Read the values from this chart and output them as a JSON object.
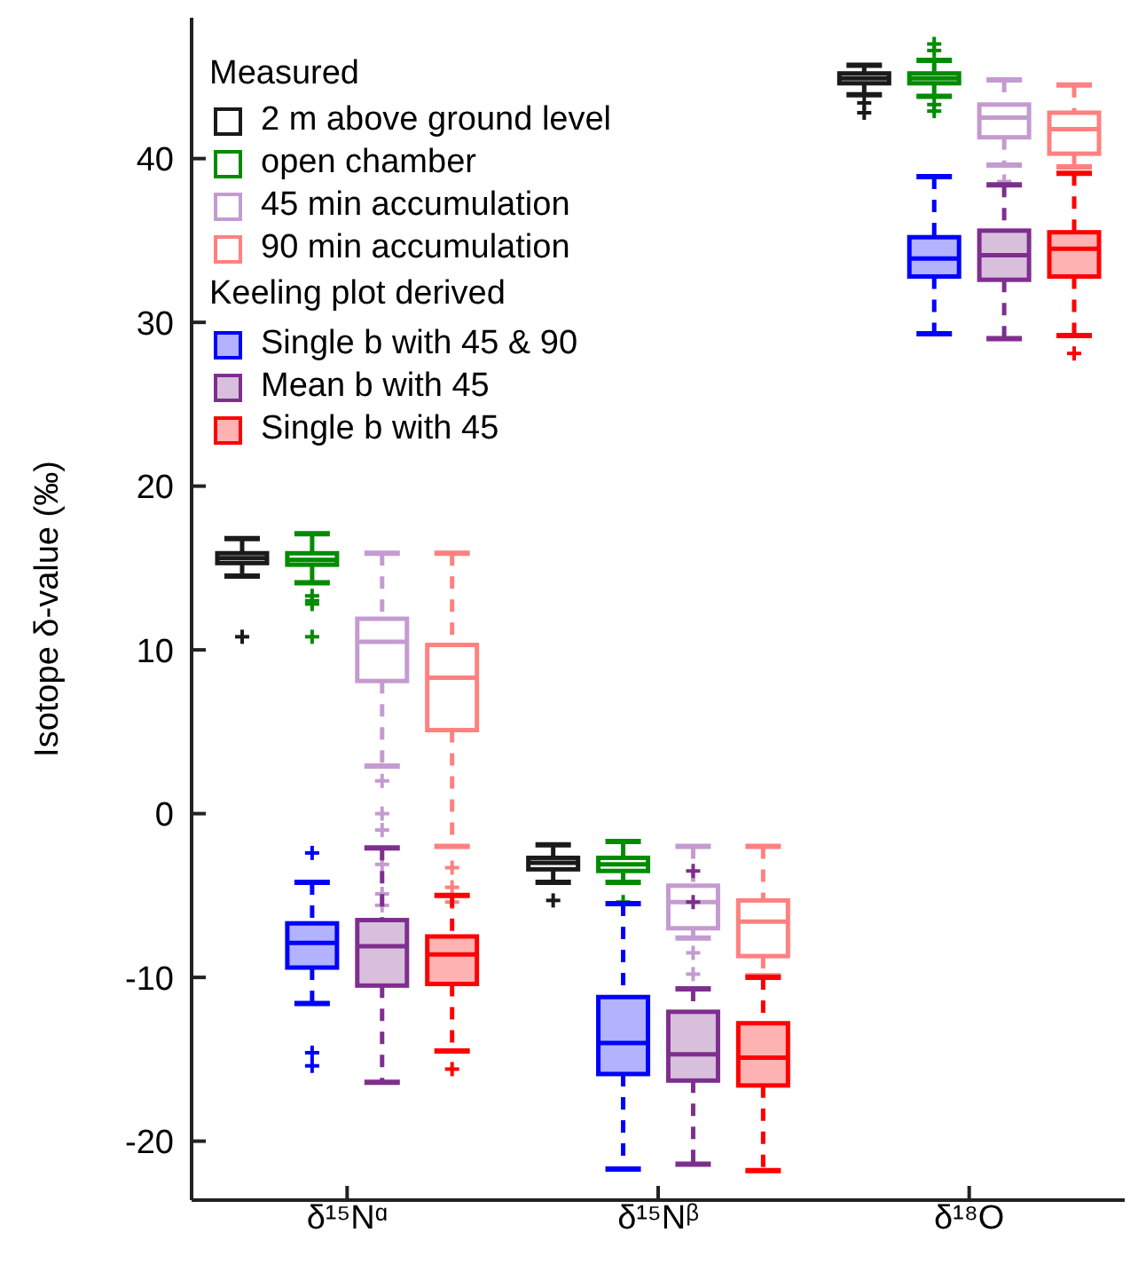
{
  "chart_data": {
    "type": "box",
    "ylabel": "Isotope δ-value (‰)",
    "categories": [
      "δ¹⁵Nᵅ",
      "δ¹⁵Nᵝ",
      "δ¹⁸O"
    ],
    "ylim": [
      -23.6,
      48.6
    ],
    "yticks": [
      -20,
      -10,
      0,
      10,
      20,
      30,
      40
    ],
    "grid": false,
    "legend": "top left",
    "legend_title": "Measured",
    "annotations": [
      "Keeling plot derived"
    ],
    "marker": "cross",
    "series": [
      {
        "name": "2 m above ground level",
        "color": "#1a1a1a",
        "line_style": "solid",
        "boxes": [
          {
            "low": 14.5,
            "q1": 15.3,
            "median": 15.6,
            "q3": 15.9,
            "high": 16.8,
            "outliers": [
              10.8
            ]
          },
          {
            "low": -4.2,
            "q1": -3.4,
            "median": -3.0,
            "q3": -2.7,
            "high": -1.9,
            "outliers": [
              -5.3
            ]
          },
          {
            "low": 43.9,
            "q1": 44.6,
            "median": 44.9,
            "q3": 45.2,
            "high": 45.7,
            "outliers": [
              43.4,
              42.8
            ]
          }
        ]
      },
      {
        "name": "open chamber",
        "color": "#008c00",
        "line_style": "solid",
        "boxes": [
          {
            "low": 14.1,
            "q1": 15.2,
            "median": 15.5,
            "q3": 15.9,
            "high": 17.1,
            "outliers": [
              13.3,
              13.0,
              12.8,
              10.8
            ]
          },
          {
            "low": -4.2,
            "q1": -3.5,
            "median": -3.1,
            "q3": -2.7,
            "high": -1.7,
            "outliers": [
              -5.4
            ]
          },
          {
            "low": 43.8,
            "q1": 44.6,
            "median": 44.9,
            "q3": 45.2,
            "high": 46.0,
            "outliers": [
              47.0,
              46.6,
              43.3,
              42.9
            ]
          }
        ]
      },
      {
        "name": "45 min accumulation",
        "color": "#c49bd0",
        "line_style": "dashed",
        "boxes": [
          {
            "low": 2.9,
            "q1": 8.1,
            "median": 10.5,
            "q3": 11.9,
            "high": 15.9,
            "outliers": [
              2.0,
              0.0,
              -1.0,
              -3.1,
              -4.9,
              -5.6
            ]
          },
          {
            "low": -7.6,
            "q1": -7.0,
            "median": -5.4,
            "q3": -4.4,
            "high": -2.0,
            "outliers": [
              -8.5,
              -9.8
            ]
          },
          {
            "low": 39.6,
            "q1": 41.3,
            "median": 42.5,
            "q3": 43.3,
            "high": 44.8,
            "outliers": [
              38.6
            ]
          }
        ]
      },
      {
        "name": "90 min accumulation",
        "color": "#ff8080",
        "line_style": "dashed",
        "boxes": [
          {
            "low": -2.0,
            "q1": 5.1,
            "median": 8.3,
            "q3": 10.3,
            "high": 15.9,
            "outliers": [
              -3.3,
              -4.5,
              -5.4
            ]
          },
          {
            "low": -9.9,
            "q1": -8.7,
            "median": -6.6,
            "q3": -5.3,
            "high": -2.0
          },
          {
            "low": 39.5,
            "q1": 40.3,
            "median": 41.8,
            "q3": 42.8,
            "high": 44.5
          }
        ]
      },
      {
        "name": "Single b with 45 & 90",
        "color": "#0000ff",
        "line_style": "dashed",
        "boxes": [
          {
            "low": -11.6,
            "q1": -9.4,
            "median": -7.9,
            "q3": -6.7,
            "high": -4.2,
            "outliers": [
              -2.4,
              -14.6,
              -15.4
            ]
          },
          {
            "low": -21.7,
            "q1": -15.9,
            "median": -14.0,
            "q3": -11.2,
            "high": -5.5
          },
          {
            "low": 29.3,
            "q1": 32.8,
            "median": 33.9,
            "q3": 35.2,
            "high": 38.9
          }
        ]
      },
      {
        "name": "Mean b with 45",
        "color": "#7e2f8e",
        "line_style": "dashed",
        "boxes": [
          {
            "low": -16.4,
            "q1": -10.5,
            "median": -8.1,
            "q3": -6.5,
            "high": -2.1
          },
          {
            "low": -21.4,
            "q1": -16.3,
            "median": -14.7,
            "q3": -12.1,
            "high": -10.7,
            "outliers": [
              -3.5,
              -5.4
            ]
          },
          {
            "low": 29.0,
            "q1": 32.6,
            "median": 34.1,
            "q3": 35.6,
            "high": 38.4
          }
        ]
      },
      {
        "name": "Single b with 45",
        "color": "#ff0000",
        "line_style": "dashed",
        "boxes": [
          {
            "low": -14.5,
            "q1": -10.4,
            "median": -8.6,
            "q3": -7.5,
            "high": -5.0,
            "outliers": [
              -15.6
            ]
          },
          {
            "low": -21.8,
            "q1": -16.6,
            "median": -14.9,
            "q3": -12.8,
            "high": -10.0
          },
          {
            "low": 29.2,
            "q1": 32.8,
            "median": 34.5,
            "q3": 35.5,
            "high": 39.1,
            "outliers": [
              28.1
            ]
          }
        ]
      }
    ]
  }
}
